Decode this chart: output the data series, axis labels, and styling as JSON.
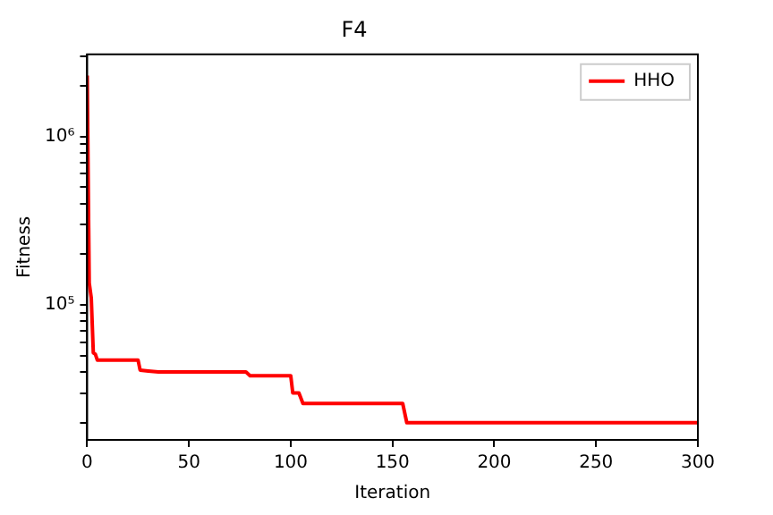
{
  "chart_data": {
    "type": "line",
    "title": "F4",
    "xlabel": "Iteration",
    "ylabel": "Fitness",
    "log": true,
    "grid": false,
    "legend": "top right",
    "marker": "none",
    "line_style": "solid",
    "xlim": [
      0,
      300
    ],
    "xticks": [
      0,
      50,
      100,
      150,
      200,
      250,
      300
    ],
    "ylim": [
      15800,
      3070000
    ],
    "yticks": [
      {
        "value": 20000,
        "label": null
      },
      {
        "value": 30000,
        "label": null
      },
      {
        "value": 40000,
        "label": null
      },
      {
        "value": 50000,
        "label": null
      },
      {
        "value": 60000,
        "label": null
      },
      {
        "value": 70000,
        "label": null
      },
      {
        "value": 80000,
        "label": null
      },
      {
        "value": 90000,
        "label": null
      },
      {
        "value": 100000,
        "label": "10⁵"
      },
      {
        "value": 200000,
        "label": null
      },
      {
        "value": 300000,
        "label": null
      },
      {
        "value": 400000,
        "label": null
      },
      {
        "value": 500000,
        "label": null
      },
      {
        "value": 600000,
        "label": null
      },
      {
        "value": 700000,
        "label": null
      },
      {
        "value": 800000,
        "label": null
      },
      {
        "value": 900000,
        "label": null
      },
      {
        "value": 1000000,
        "label": "10⁶"
      },
      {
        "value": 2000000,
        "label": null
      },
      {
        "value": 3000000,
        "label": null
      }
    ],
    "series": [
      {
        "name": "HHO",
        "color": "#ff0000",
        "x": [
          0,
          1,
          2,
          3,
          4,
          5,
          25,
          26,
          30,
          35,
          78,
          80,
          100,
          101,
          104,
          106,
          155,
          157,
          300
        ],
        "values": [
          2300000,
          135000,
          110000,
          52000,
          51000,
          47000,
          47000,
          41000,
          40500,
          40000,
          40000,
          38000,
          38000,
          30000,
          30000,
          26000,
          26000,
          20000,
          20000
        ]
      }
    ]
  }
}
